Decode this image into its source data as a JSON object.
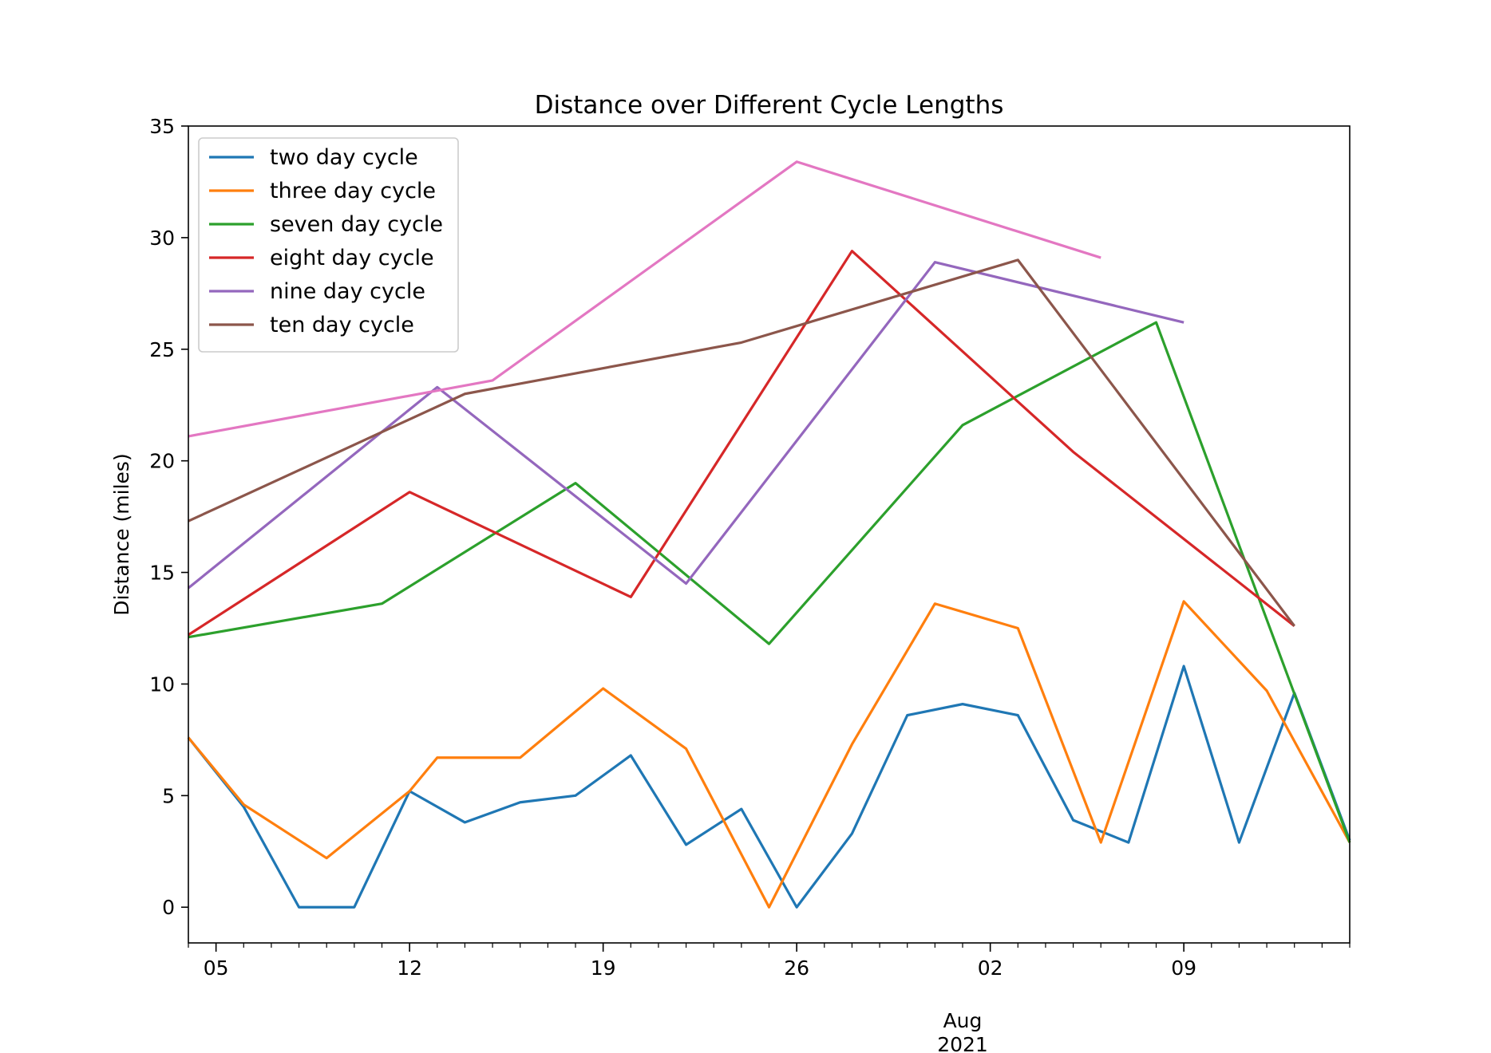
{
  "chart_data": {
    "type": "line",
    "title": "Distance over Different Cycle Lengths",
    "xlabel": "",
    "ylabel": "Distance (miles)",
    "ylim": [
      -1.6,
      35
    ],
    "xlim": [
      "2021-07-04",
      "2021-08-15"
    ],
    "grid": false,
    "legend_position": "upper left",
    "x_tick_labels": [
      {
        "date": "2021-07-05",
        "label": "05"
      },
      {
        "date": "2021-07-12",
        "label": "12"
      },
      {
        "date": "2021-07-19",
        "label": "19"
      },
      {
        "date": "2021-07-26",
        "label": "26"
      },
      {
        "date": "2021-08-02",
        "label": "02"
      },
      {
        "date": "2021-08-09",
        "label": "09"
      }
    ],
    "x_secondary_label": {
      "date": "2021-08-01",
      "lines": [
        "Aug",
        "2021"
      ]
    },
    "y_ticks": [
      0,
      5,
      10,
      15,
      20,
      25,
      30,
      35
    ],
    "series": [
      {
        "name": "two day cycle",
        "color": "#1f77b4",
        "x": [
          "2021-07-04",
          "2021-07-06",
          "2021-07-08",
          "2021-07-10",
          "2021-07-12",
          "2021-07-14",
          "2021-07-16",
          "2021-07-18",
          "2021-07-20",
          "2021-07-22",
          "2021-07-24",
          "2021-07-26",
          "2021-07-28",
          "2021-07-30",
          "2021-08-01",
          "2021-08-03",
          "2021-08-05",
          "2021-08-07",
          "2021-08-09",
          "2021-08-11",
          "2021-08-13",
          "2021-08-15"
        ],
        "y": [
          7.6,
          4.5,
          0,
          0,
          5.2,
          3.8,
          4.7,
          5.0,
          6.8,
          2.8,
          4.4,
          0,
          3.3,
          8.6,
          9.1,
          8.6,
          3.9,
          2.9,
          10.8,
          2.9,
          9.6,
          3.0
        ]
      },
      {
        "name": "three day cycle",
        "color": "#ff7f0e",
        "x": [
          "2021-07-04",
          "2021-07-06",
          "2021-07-09",
          "2021-07-12",
          "2021-07-13",
          "2021-07-16",
          "2021-07-19",
          "2021-07-22",
          "2021-07-25",
          "2021-07-28",
          "2021-07-31",
          "2021-08-03",
          "2021-08-06",
          "2021-08-09",
          "2021-08-12",
          "2021-08-15"
        ],
        "y": [
          7.6,
          4.6,
          2.2,
          5.2,
          6.7,
          6.7,
          9.8,
          7.1,
          0,
          7.3,
          13.6,
          12.5,
          2.9,
          13.7,
          9.7,
          2.9
        ]
      },
      {
        "name": "seven day cycle",
        "color": "#2ca02c",
        "x": [
          "2021-07-04",
          "2021-07-11",
          "2021-07-18",
          "2021-07-25",
          "2021-08-01",
          "2021-08-08",
          "2021-08-15"
        ],
        "y": [
          12.1,
          13.6,
          19.0,
          11.8,
          21.6,
          26.2,
          2.9
        ]
      },
      {
        "name": "eight day cycle",
        "color": "#d62728",
        "x": [
          "2021-07-04",
          "2021-07-12",
          "2021-07-20",
          "2021-07-28",
          "2021-08-05",
          "2021-08-13"
        ],
        "y": [
          12.2,
          18.6,
          13.9,
          29.4,
          20.4,
          12.6
        ]
      },
      {
        "name": "nine day cycle",
        "color": "#9467bd",
        "x": [
          "2021-07-04",
          "2021-07-13",
          "2021-07-22",
          "2021-07-31",
          "2021-08-09"
        ],
        "y": [
          14.3,
          23.3,
          14.5,
          28.9,
          26.2
        ]
      },
      {
        "name": "ten day cycle",
        "color": "#8c564b",
        "x": [
          "2021-07-04",
          "2021-07-14",
          "2021-07-24",
          "2021-08-03",
          "2021-08-13"
        ],
        "y": [
          17.3,
          23.0,
          25.3,
          29.0,
          12.6
        ]
      },
      {
        "color": "#e377c2",
        "x": [
          "2021-07-04",
          "2021-07-15",
          "2021-07-26",
          "2021-08-06"
        ],
        "y": [
          21.1,
          23.6,
          33.4,
          29.1
        ]
      }
    ]
  }
}
